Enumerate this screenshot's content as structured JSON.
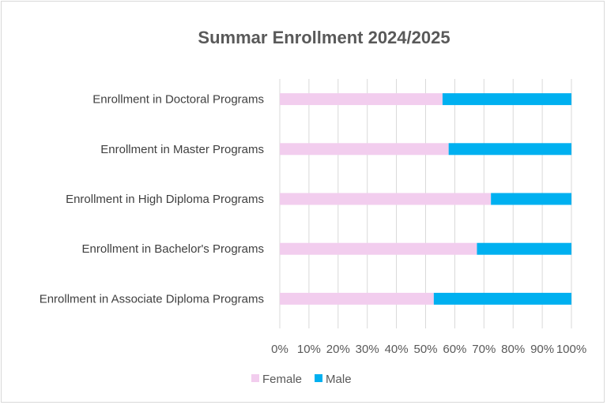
{
  "chart_data": {
    "type": "bar",
    "orientation": "horizontal",
    "stacked": "percent",
    "title": "Summar Enrollment 2024/2025",
    "categories": [
      "Enrollment in Doctoral Programs",
      "Enrollment in Master Programs",
      "Enrollment in High Diploma Programs",
      "Enrollment in Bachelor's Programs",
      "Enrollment in Associate Diploma Programs"
    ],
    "series": [
      {
        "name": "Female",
        "color": "#f2cdee",
        "values": [
          55.8,
          57.9,
          72.4,
          67.6,
          52.8
        ]
      },
      {
        "name": "Male",
        "color": "#00b0f0",
        "values": [
          44.2,
          42.1,
          27.6,
          32.4,
          47.2
        ]
      }
    ],
    "xlim": [
      0,
      100
    ],
    "xticks": [
      "0%",
      "10%",
      "20%",
      "30%",
      "40%",
      "50%",
      "60%",
      "70%",
      "80%",
      "90%",
      "100%"
    ],
    "grid": true,
    "legend": "bottom"
  }
}
